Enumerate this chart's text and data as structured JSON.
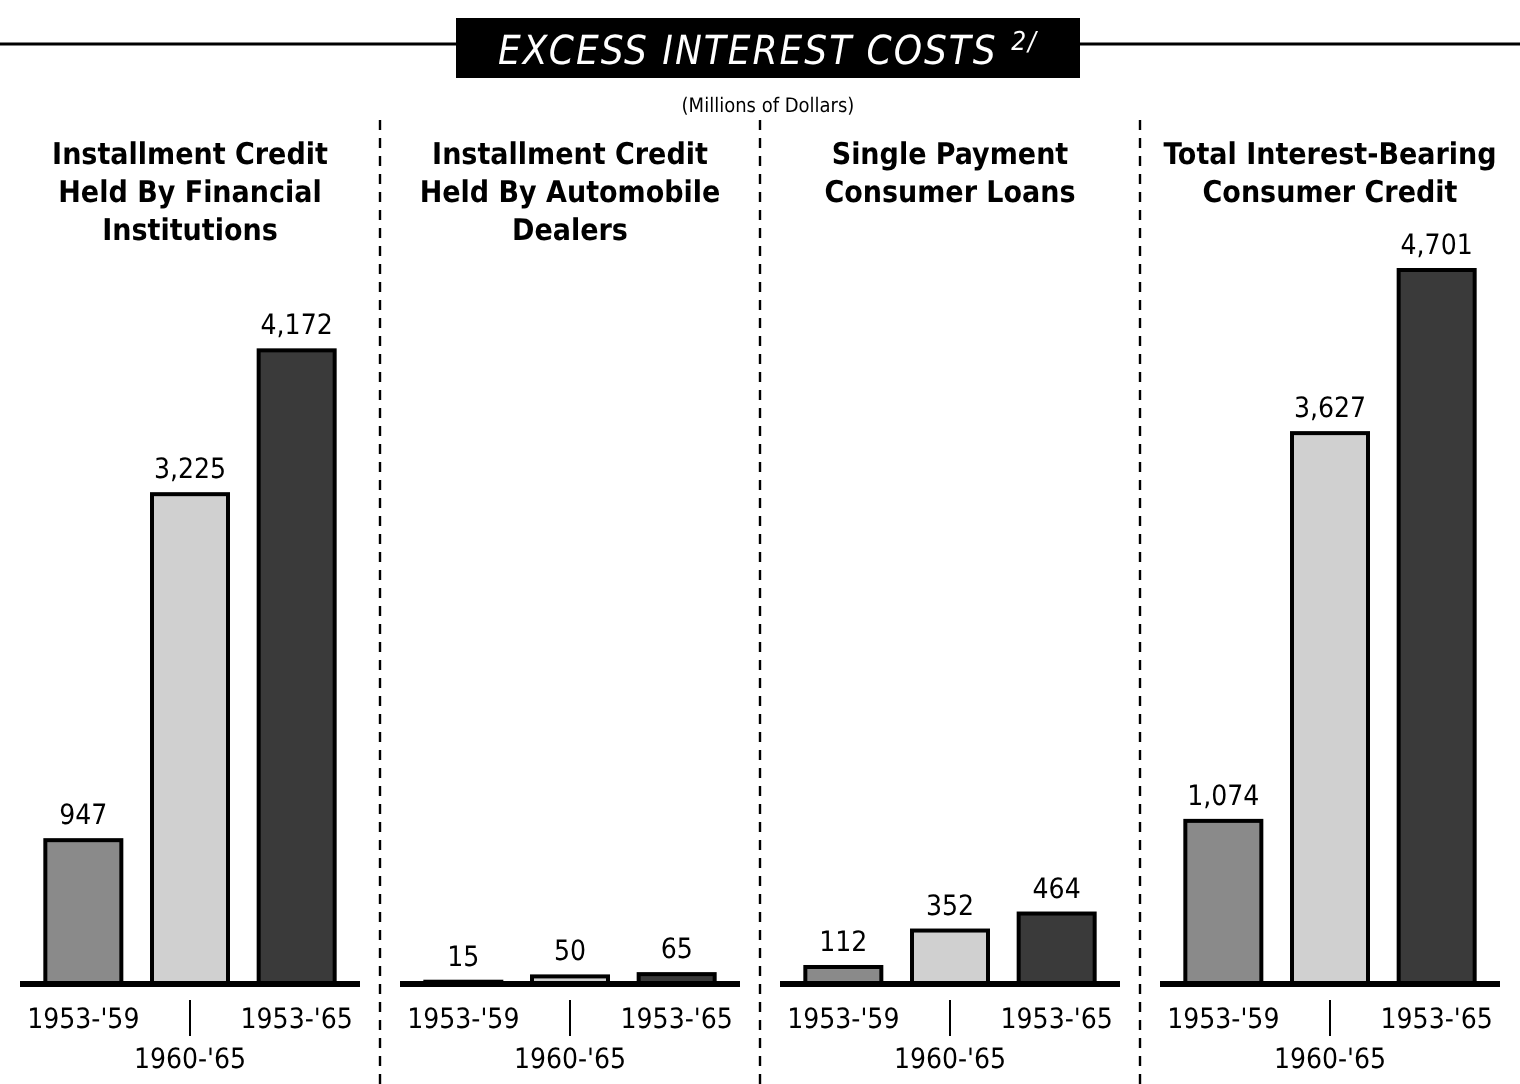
{
  "chart_data": [
    {
      "type": "other",
      "title": "EXCESS INTEREST COSTS $^{2/}$",
      "subtitle": "(Millions of Dollars)"
    },
    {
      "type": "bar",
      "title": "Installment Credit Held By Financial Institutions",
      "categories": [
        "1953-'59",
        "1960-'65",
        "1953-'65"
      ],
      "values": [
        947,
        3225,
        4172
      ],
      "value_labels": [
        "947",
        "3,225",
        "4,172"
      ],
      "colors": [
        "#8a8a8a",
        "#d0d0d0",
        "#3a3a3a"
      ]
    },
    {
      "type": "bar",
      "title": "Installment Credit Held By Automobile Dealers",
      "categories": [
        "1953-'59",
        "1960-'65",
        "1953-'65"
      ],
      "values": [
        15,
        50,
        65
      ],
      "value_labels": [
        "15",
        "50",
        "65"
      ],
      "colors": [
        "#8a8a8a",
        "#d0d0d0",
        "#3a3a3a"
      ]
    },
    {
      "type": "bar",
      "title": "Single Payment Consumer Loans",
      "categories": [
        "1953-'59",
        "1960-'65",
        "1953-'65"
      ],
      "values": [
        112,
        352,
        464
      ],
      "value_labels": [
        "112",
        "352",
        "464"
      ],
      "colors": [
        "#8a8a8a",
        "#d0d0d0",
        "#3a3a3a"
      ]
    },
    {
      "type": "bar",
      "title": "Total Interest-Bearing Consumer Credit",
      "categories": [
        "1953-'59",
        "1960-'65",
        "1953-'65"
      ],
      "values": [
        1074,
        3627,
        4701
      ],
      "value_labels": [
        "1,074",
        "3,627",
        "4,701"
      ],
      "colors": [
        "#8a8a8a",
        "#d0d0d0",
        "#3a3a3a"
      ]
    }
  ]
}
